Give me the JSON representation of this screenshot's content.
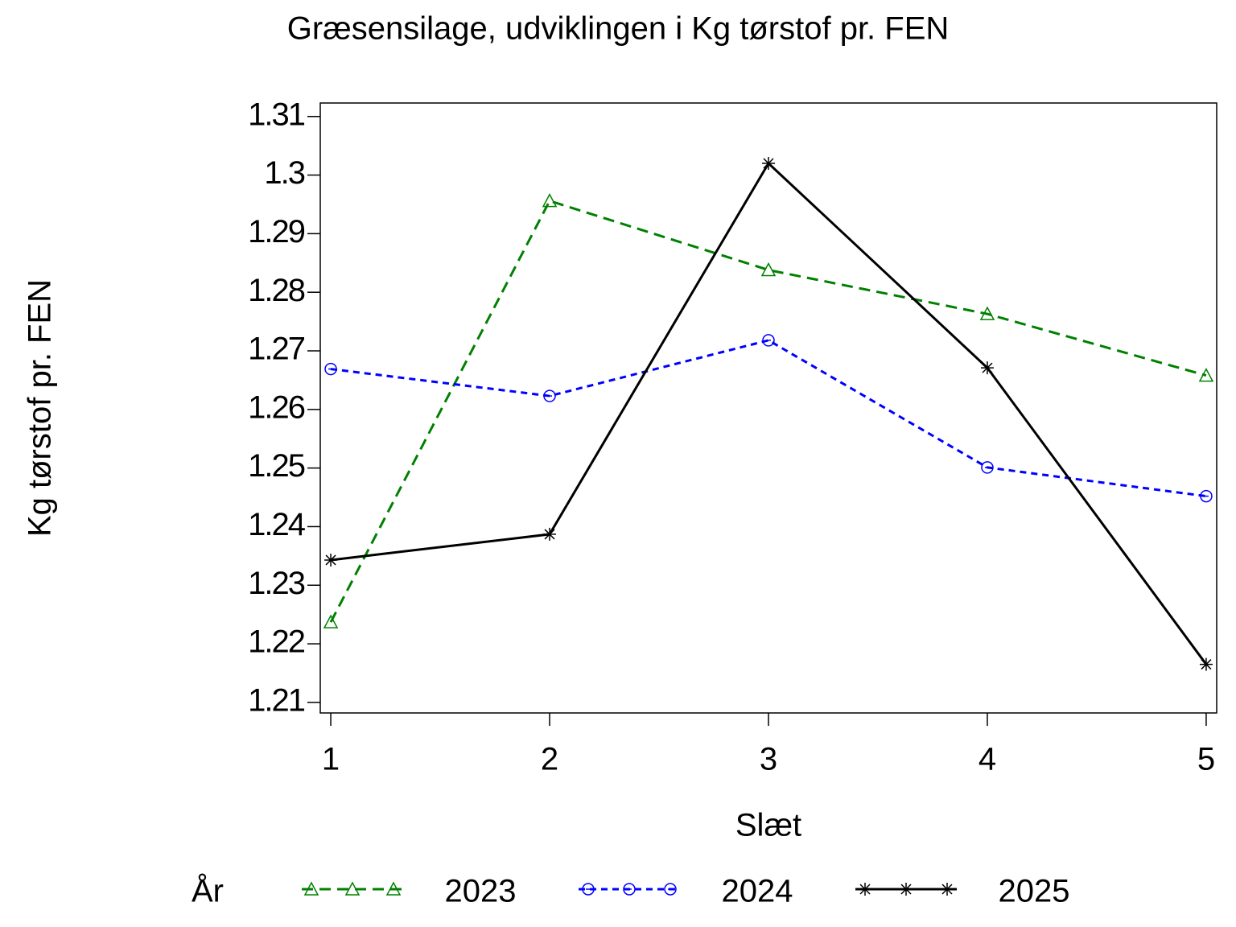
{
  "chart_data": {
    "type": "line",
    "title": "Græsensilage, udviklingen i Kg tørstof pr. FEN",
    "x_label": "Slæt",
    "y_label": "Kg tørstof pr. FEN",
    "legend_title": "År",
    "legend_position": "bottom",
    "x": [
      1,
      2,
      3,
      4,
      5
    ],
    "xlim": [
      0.952,
      5.048
    ],
    "xticks": [
      1,
      2,
      3,
      4,
      5
    ],
    "ylim": [
      1.2082,
      1.3123
    ],
    "yticks": [
      1.21,
      1.22,
      1.23,
      1.24,
      1.25,
      1.26,
      1.27,
      1.28,
      1.29,
      1.3,
      1.31
    ],
    "series": [
      {
        "name": "2023",
        "color": "#008000",
        "marker": "triangle",
        "line_style": "dashed",
        "values": [
          1.2237,
          1.2956,
          1.2838,
          1.2763,
          1.2658
        ]
      },
      {
        "name": "2024",
        "color": "#0000ff",
        "marker": "circle",
        "line_style": "dotted",
        "values": [
          1.2669,
          1.2623,
          1.2718,
          1.2501,
          1.2452
        ]
      },
      {
        "name": "2025",
        "color": "#000000",
        "marker": "star",
        "line_style": "solid",
        "values": [
          1.2343,
          1.2387,
          1.302,
          1.2671,
          1.2165
        ]
      }
    ]
  }
}
